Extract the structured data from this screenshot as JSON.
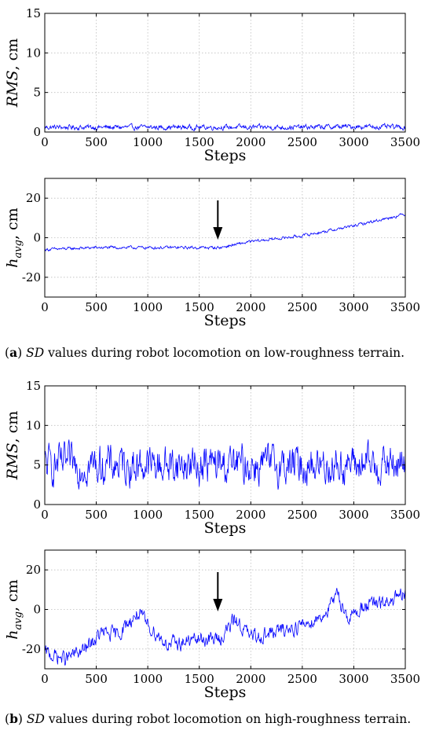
{
  "captions": [
    {
      "letter": "a",
      "sd": "SD",
      "text": " values during robot locomotion on low-roughness terrain."
    },
    {
      "letter": "b",
      "sd": "SD",
      "text": " values during robot locomotion on high-roughness terrain."
    }
  ],
  "chart_data": [
    {
      "id": "a-rms",
      "type": "line",
      "xlabel": "Steps",
      "ylabel": "RMS, cm",
      "xlim": [
        0,
        3500
      ],
      "ylim": [
        0,
        15
      ],
      "xticks": [
        0,
        500,
        1000,
        1500,
        2000,
        2500,
        3000,
        3500
      ],
      "yticks": [
        0,
        5,
        10,
        15
      ],
      "grid": true,
      "color": "#0000ff",
      "profile_x": [
        0,
        500,
        1000,
        1500,
        2000,
        2500,
        3000,
        3500
      ],
      "profile_y": [
        0.6,
        0.6,
        0.6,
        0.6,
        0.6,
        0.6,
        0.7,
        0.6
      ],
      "noise": 0.25,
      "annotation": null
    },
    {
      "id": "a-havg",
      "type": "line",
      "xlabel": "Steps",
      "ylabel": "h_avg, cm",
      "xlim": [
        0,
        3500
      ],
      "ylim": [
        -30,
        30
      ],
      "xticks": [
        0,
        500,
        1000,
        1500,
        2000,
        2500,
        3000,
        3500
      ],
      "yticks": [
        -20,
        0,
        20
      ],
      "grid": true,
      "color": "#0000ff",
      "profile_x": [
        0,
        500,
        1000,
        1500,
        1700,
        2000,
        2500,
        3000,
        3500
      ],
      "profile_y": [
        -6,
        -5,
        -5,
        -5,
        -5,
        -2,
        1,
        6,
        12
      ],
      "noise": 0.6,
      "annotation": {
        "type": "arrow",
        "x": 1680
      }
    },
    {
      "id": "b-rms",
      "type": "line",
      "xlabel": "Steps",
      "ylabel": "RMS, cm",
      "xlim": [
        0,
        3500
      ],
      "ylim": [
        0,
        15
      ],
      "xticks": [
        0,
        500,
        1000,
        1500,
        2000,
        2500,
        3000,
        3500
      ],
      "yticks": [
        0,
        5,
        10,
        15
      ],
      "grid": true,
      "color": "#0000ff",
      "profile_x": [
        0,
        500,
        1000,
        1500,
        2000,
        2500,
        3000,
        3500
      ],
      "profile_y": [
        5,
        5,
        5,
        5,
        5,
        5,
        5,
        5
      ],
      "noise": 1.9,
      "annotation": null
    },
    {
      "id": "b-havg",
      "type": "line",
      "xlabel": "Steps",
      "ylabel": "h_avg, cm",
      "xlim": [
        0,
        3500
      ],
      "ylim": [
        -30,
        30
      ],
      "xticks": [
        0,
        500,
        1000,
        1500,
        2000,
        2500,
        3000,
        3500
      ],
      "yticks": [
        -20,
        0,
        20
      ],
      "grid": true,
      "color": "#0000ff",
      "profile_x": [
        0,
        200,
        400,
        550,
        700,
        900,
        1000,
        1200,
        1500,
        1700,
        1850,
        2000,
        2200,
        2500,
        2700,
        2850,
        2950,
        3100,
        3300,
        3500
      ],
      "profile_y": [
        -22,
        -25,
        -20,
        -12,
        -13,
        -2,
        -8,
        -18,
        -15,
        -15,
        -5,
        -14,
        -12,
        -8,
        -3,
        7,
        -5,
        2,
        3,
        7
      ],
      "noise": 3.0,
      "annotation": {
        "type": "arrow",
        "x": 1680
      }
    }
  ]
}
